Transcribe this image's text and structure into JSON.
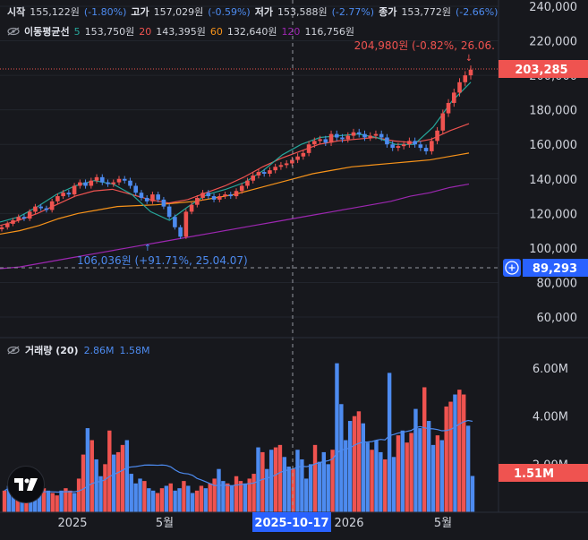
{
  "ohlc": {
    "open_label": "시작",
    "open": "155,122원",
    "open_chg": "(-1.80%)",
    "high_label": "고가",
    "high": "157,029원",
    "high_chg": "(-0.59%)",
    "low_label": "저가",
    "low": "153,588원",
    "low_chg": "(-2.77%)",
    "close_label": "종가",
    "close": "153,772원",
    "close_chg": "(-2.66%)"
  },
  "ma_legend": {
    "title": "이동평균선",
    "items": [
      {
        "period": "5",
        "value": "153,750원",
        "color": "#26a69a"
      },
      {
        "period": "20",
        "value": "143,395원",
        "color": "#ef5350"
      },
      {
        "period": "60",
        "value": "132,640원",
        "color": "#f7931a"
      },
      {
        "period": "120",
        "value": "116,756원",
        "color": "#9c27b0"
      }
    ]
  },
  "volume_legend": {
    "title": "거래량 (20)",
    "value1": "2.86M",
    "value2": "1.58M"
  },
  "price_axis": {
    "ticks": [
      "240,000",
      "220,000",
      "200,000",
      "180,000",
      "160,000",
      "140,000",
      "120,000",
      "100,000",
      "80,000",
      "60,000"
    ],
    "tick_values": [
      240000,
      220000,
      200000,
      180000,
      160000,
      140000,
      120000,
      100000,
      80000,
      60000
    ],
    "current_price": "203,285",
    "crosshair_price": "89,293"
  },
  "volume_axis": {
    "ticks": [
      "6.00M",
      "4.00M",
      "2.00M"
    ],
    "tick_values": [
      6000000,
      4000000,
      2000000
    ],
    "current_volume": "1.51M"
  },
  "time_axis": {
    "labels": [
      "2025",
      "5월",
      "2026",
      "5월"
    ],
    "crosshair_date": "2025-10-17"
  },
  "annotations": {
    "high_marker": "204,980원 (-0.82%, 26.06.",
    "low_marker": "106,036원 (+91.71%, 25.04.07)"
  },
  "colors": {
    "up": "#ef5350",
    "down": "#4d8bf0",
    "background": "#17181d",
    "ma5": "#26a69a",
    "ma20": "#ef5350",
    "ma60": "#f7931a",
    "ma120": "#9c27b0"
  },
  "chart_data": {
    "type": "candlestick",
    "x_range": [
      "2024-11",
      "2026-06"
    ],
    "y_range": [
      50000,
      250000
    ],
    "volume_range": [
      0,
      7000000
    ],
    "candles_close": [
      112000,
      114000,
      116000,
      118000,
      117000,
      121000,
      124000,
      123000,
      122000,
      127000,
      130000,
      132000,
      131000,
      136000,
      138000,
      136000,
      139000,
      141000,
      138000,
      137000,
      138000,
      140000,
      139000,
      136000,
      132000,
      129000,
      127000,
      131000,
      128000,
      124000,
      118000,
      112000,
      106500,
      121000,
      125000,
      129000,
      132000,
      130000,
      128000,
      130000,
      131000,
      130000,
      133000,
      136000,
      139000,
      142000,
      144000,
      143000,
      145000,
      147000,
      148000,
      149000,
      151000,
      153000,
      155000,
      160000,
      162000,
      163000,
      161000,
      166000,
      164000,
      163000,
      165000,
      167000,
      166000,
      164000,
      165000,
      166000,
      164000,
      160000,
      158000,
      159000,
      160000,
      162000,
      160000,
      158000,
      156000,
      162000,
      168000,
      178000,
      184000,
      190000,
      196000,
      200000,
      203285
    ],
    "ma5": [
      115000,
      118000,
      124000,
      131000,
      136000,
      139000,
      137000,
      131000,
      121000,
      116000,
      124000,
      131000,
      134000,
      138000,
      145000,
      154000,
      160000,
      164000,
      165000,
      166000,
      164000,
      160000,
      160000,
      170000,
      185000,
      196000
    ],
    "ma20": [
      113000,
      116000,
      120000,
      125000,
      130000,
      133000,
      134000,
      131000,
      128000,
      126000,
      128000,
      132000,
      136000,
      141000,
      147000,
      152000,
      156000,
      160000,
      162000,
      163000,
      164000,
      162000,
      161000,
      163000,
      168000,
      172000
    ],
    "ma60": [
      108000,
      110000,
      113000,
      117000,
      120000,
      122000,
      124000,
      124500,
      125000,
      126000,
      127000,
      129000,
      131000,
      134000,
      137000,
      140000,
      143000,
      145000,
      147000,
      148000,
      149000,
      150000,
      151000,
      153000,
      155000
    ],
    "ma120": [
      88000,
      89000,
      91000,
      93000,
      95000,
      97000,
      99000,
      101000,
      103000,
      105000,
      107000,
      109000,
      111000,
      113000,
      115000,
      117000,
      119000,
      121000,
      123000,
      125000,
      127000,
      130000,
      132000,
      135000,
      137000
    ],
    "volume_millions": [
      0.9,
      1.1,
      0.8,
      0.7,
      0.6,
      0.9,
      0.7,
      1.0,
      0.8,
      1.0,
      0.9,
      0.8,
      0.7,
      0.9,
      1.0,
      0.9,
      0.8,
      1.4,
      2.4,
      3.5,
      3.0,
      2.2,
      1.5,
      2.0,
      3.4,
      2.4,
      2.5,
      2.8,
      3.0,
      1.6,
      1.2,
      1.4,
      1.3,
      1.0,
      0.9,
      0.8,
      1.0,
      1.1,
      1.2,
      0.9,
      1.0,
      1.3,
      1.1,
      0.8,
      0.9,
      1.1,
      1.0,
      1.2,
      1.4,
      1.8,
      1.3,
      1.2,
      1.1,
      1.5,
      1.3,
      1.2,
      1.4,
      1.6,
      2.7,
      2.5,
      1.8,
      2.6,
      2.7,
      2.8,
      2.3,
      1.9,
      1.8,
      2.6,
      2.2,
      1.4,
      2.0,
      2.8,
      2.1,
      2.5,
      2.0,
      2.6,
      6.2,
      4.5,
      3.0,
      3.8,
      4.0,
      4.2,
      3.7,
      2.9,
      2.6,
      3.0,
      2.5,
      2.2,
      5.8,
      2.3,
      3.2,
      3.4,
      2.9,
      3.3,
      4.3,
      3.5,
      5.2,
      3.8,
      2.8,
      3.2,
      3.0,
      4.4,
      4.6,
      4.9,
      5.1,
      4.9,
      3.6,
      1.51
    ],
    "current_price": 203285,
    "high_marker": 204980,
    "low_marker": 106036,
    "crosshair_price": 89293,
    "crosshair_date": "2025-10-17"
  }
}
